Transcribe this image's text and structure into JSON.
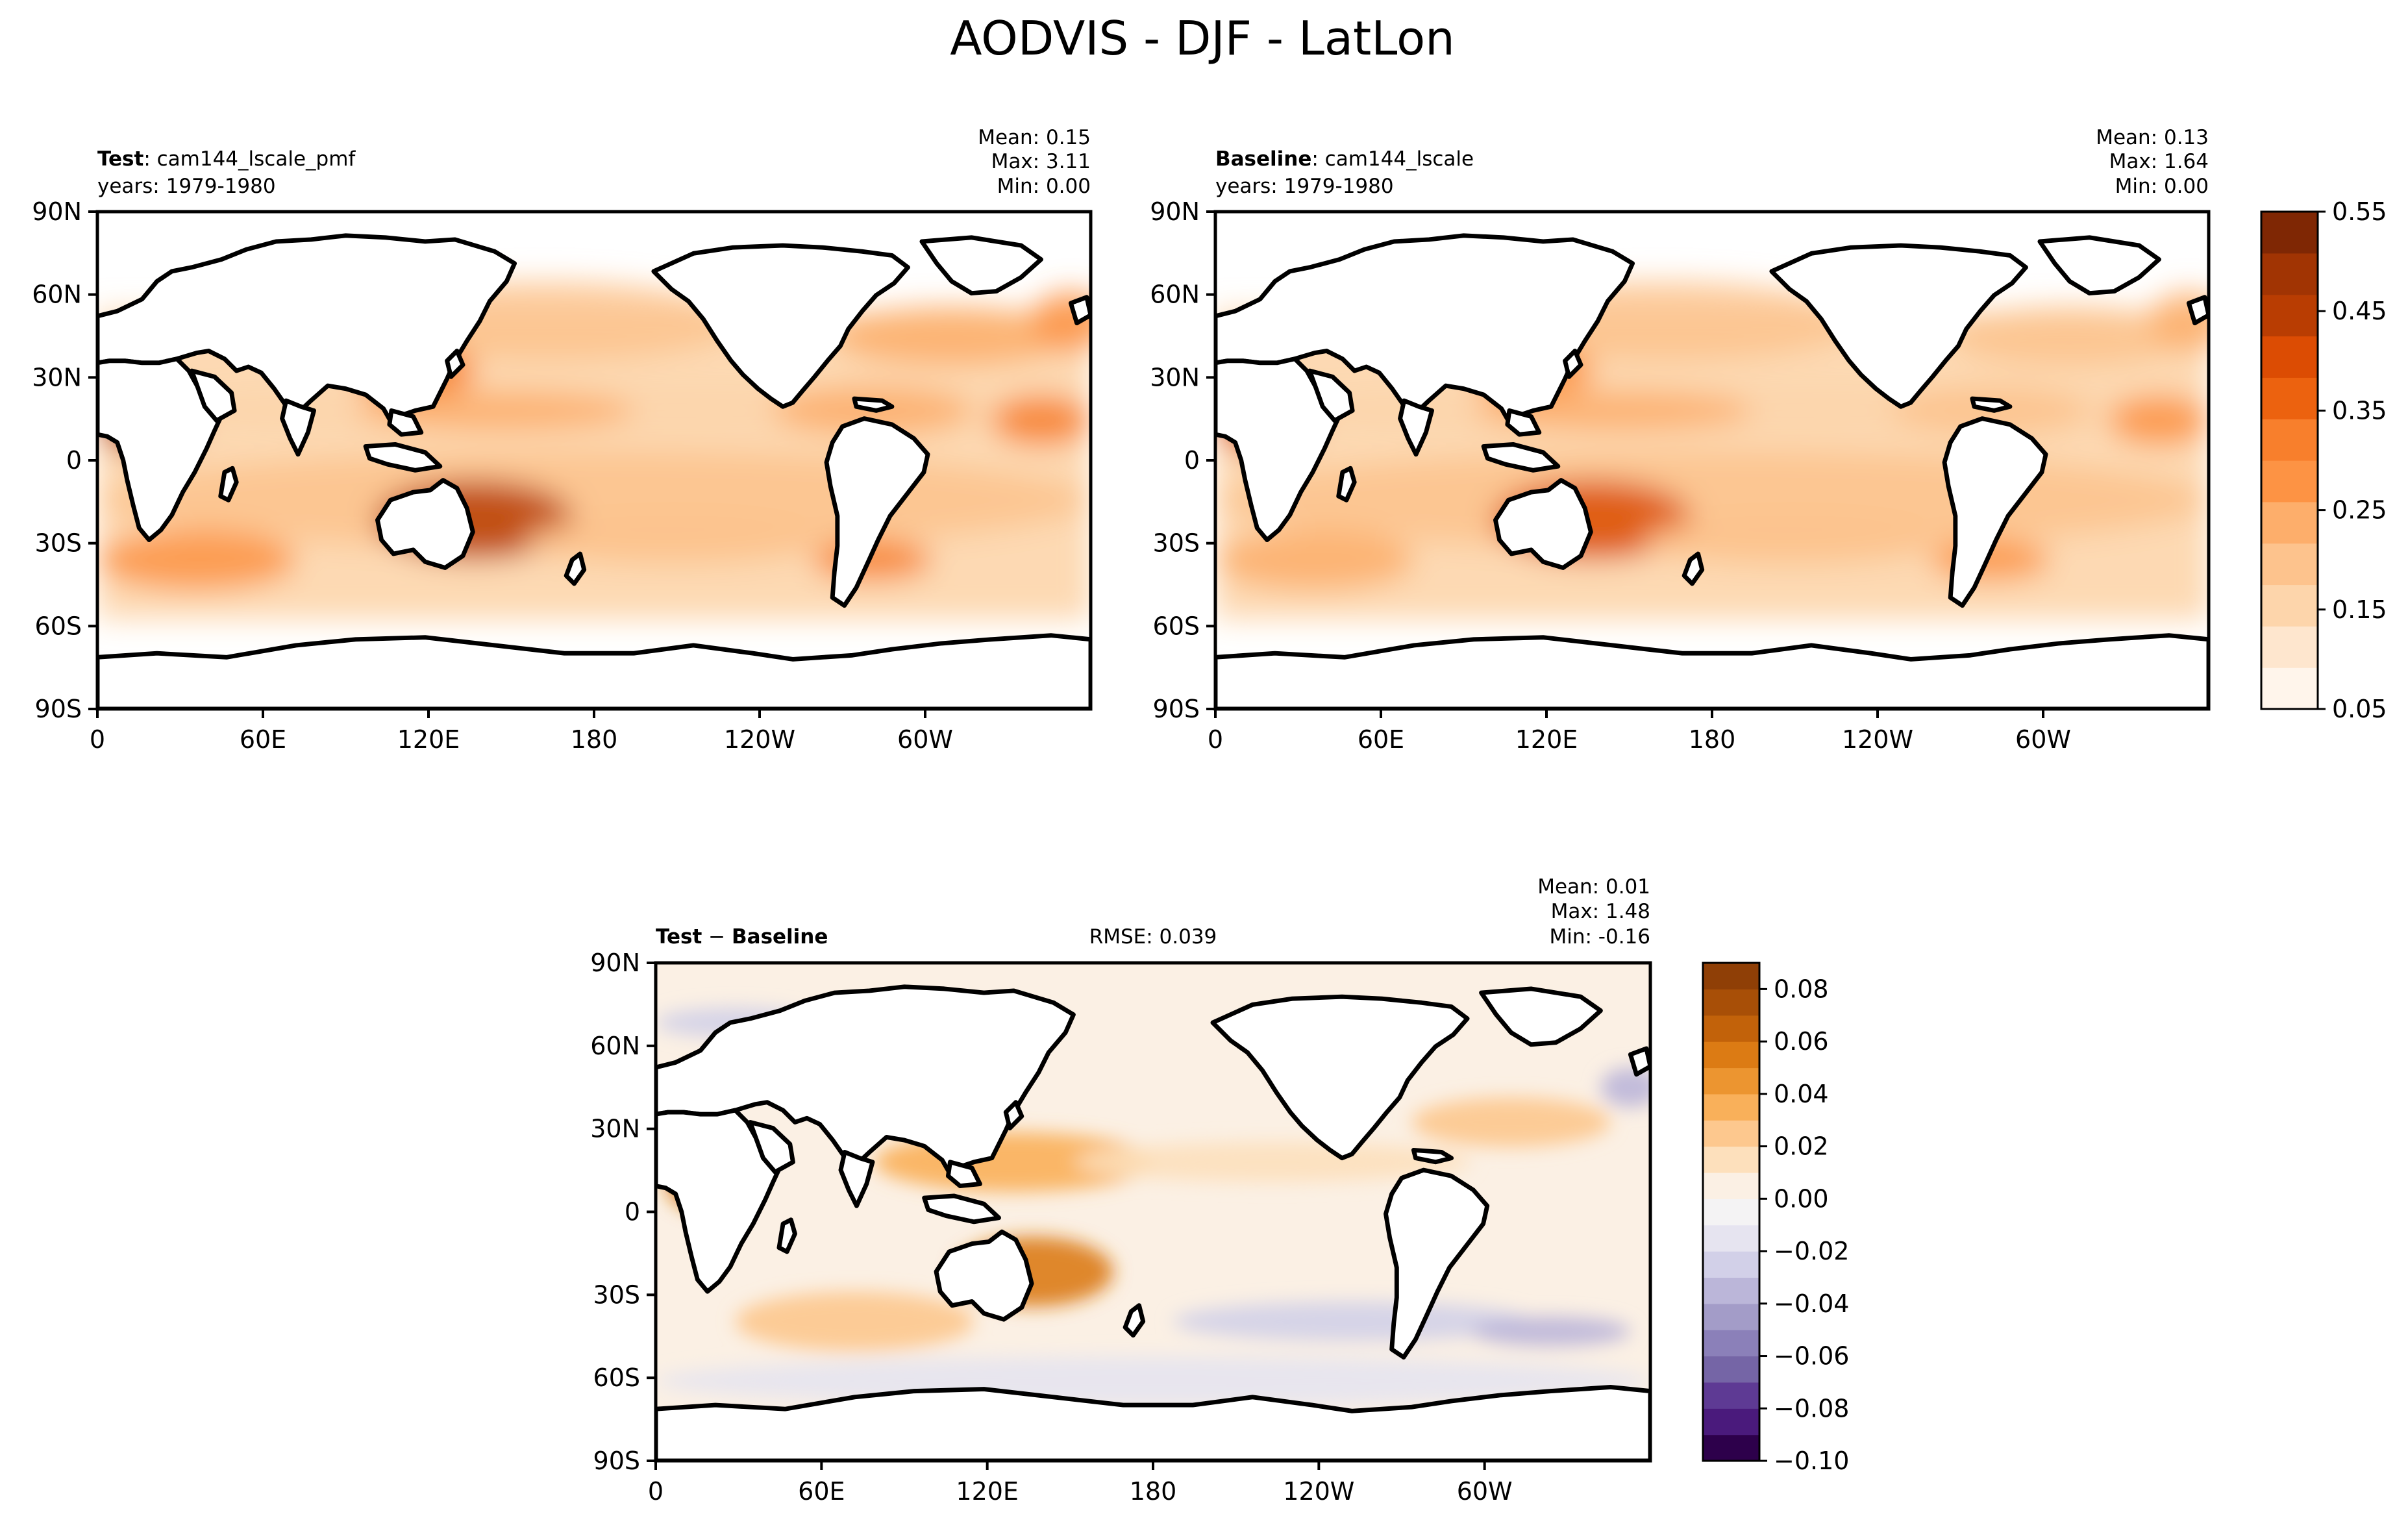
{
  "figure_title": "AODVIS - DJF - LatLon",
  "chart_data": [
    {
      "type": "heatmap",
      "panel": "test",
      "label_bold": "Test",
      "label_rest": ": cam144_lscale_pmf",
      "years": "years: 1979-1980",
      "stats": {
        "mean": "Mean:  0.15",
        "max": "Max:  3.11",
        "min": "Min:  0.00"
      },
      "x_ticks": [
        "0",
        "60E",
        "120E",
        "180",
        "120W",
        "60W"
      ],
      "y_ticks": [
        "90N",
        "60N",
        "30N",
        "0",
        "30S",
        "60S",
        "90S"
      ],
      "colorbar": "shared_oranges",
      "intensity": 1.0
    },
    {
      "type": "heatmap",
      "panel": "baseline",
      "label_bold": "Baseline",
      "label_rest": ": cam144_lscale",
      "years": "years: 1979-1980",
      "stats": {
        "mean": "Mean:  0.13",
        "max": "Max:  1.64",
        "min": "Min:  0.00"
      },
      "x_ticks": [
        "0",
        "60E",
        "120E",
        "180",
        "120W",
        "60W"
      ],
      "y_ticks": [
        "90N",
        "60N",
        "30N",
        "0",
        "30S",
        "60S",
        "90S"
      ],
      "colorbar": "shared_oranges",
      "intensity": 0.88
    },
    {
      "type": "heatmap",
      "panel": "difference",
      "label_bold": "Test",
      "label_minus": " − ",
      "label_bold2": "Baseline",
      "rmse": "RMSE: 0.039",
      "stats": {
        "mean": "Mean:  0.01",
        "max": "Max:  1.48",
        "min": "Min: -0.16"
      },
      "x_ticks": [
        "0",
        "60E",
        "120E",
        "180",
        "120W",
        "60W"
      ],
      "y_ticks": [
        "90N",
        "60N",
        "30N",
        "0",
        "30S",
        "60S",
        "90S"
      ],
      "colorbar": "diff_puor"
    }
  ],
  "colorbars": {
    "shared_oranges": {
      "ticks": [
        "0.05",
        "0.15",
        "0.25",
        "0.35",
        "0.45",
        "0.55"
      ],
      "colors": [
        "#fff5eb",
        "#fee6ce",
        "#fdd5ab",
        "#fdc38d",
        "#fdae6b",
        "#fd9344",
        "#f87f2c",
        "#ec620f",
        "#dc4c03",
        "#b93d02",
        "#a13403",
        "#7f2704"
      ]
    },
    "diff_puor": {
      "ticks": [
        "0.08",
        "0.06",
        "0.04",
        "0.02",
        "0.00",
        "−0.02",
        "−0.04",
        "−0.06",
        "−0.08",
        "−0.10"
      ],
      "colors": [
        "#2d004b",
        "#4a1a7c",
        "#5e3a94",
        "#7565a6",
        "#8b80b9",
        "#a39cc8",
        "#bbb6d9",
        "#d2d0e8",
        "#e6e4f0",
        "#f4f3f4",
        "#fbf0e4",
        "#fde0bc",
        "#fdc88e",
        "#f9b05a",
        "#ec9530",
        "#dc7b14",
        "#c2620a",
        "#a84f07",
        "#8f3f06"
      ]
    }
  }
}
